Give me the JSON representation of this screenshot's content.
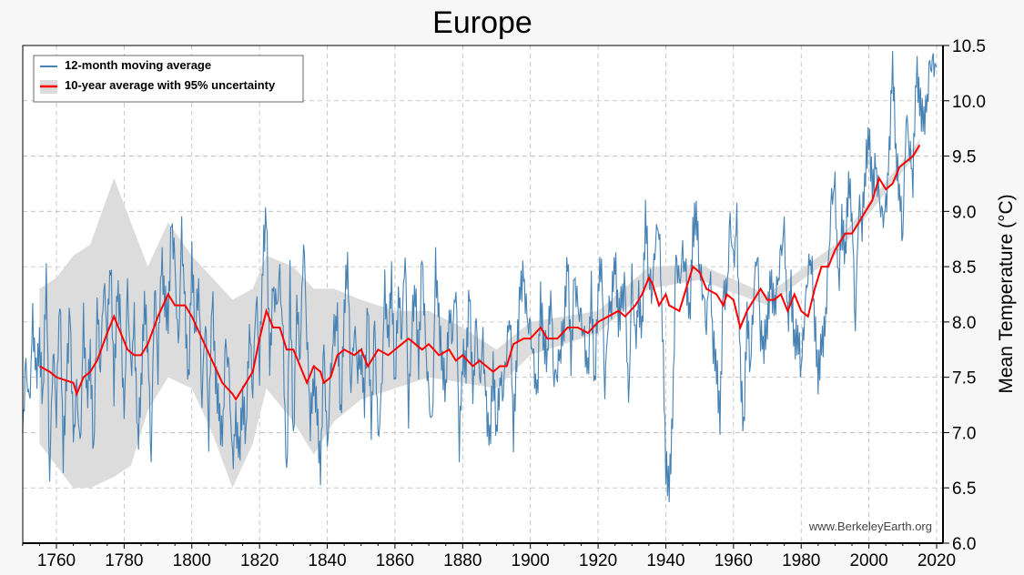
{
  "chart_data": {
    "type": "line",
    "title": "Europe",
    "xlabel": "",
    "ylabel": "Mean Temperature (°C)",
    "xlim": [
      1750,
      2022
    ],
    "ylim": [
      6.0,
      10.5
    ],
    "grid": true,
    "legend_position": "top-left",
    "x_ticks": [
      "1760",
      "1780",
      "1800",
      "1820",
      "1840",
      "1860",
      "1880",
      "1900",
      "1920",
      "1940",
      "1960",
      "1980",
      "2000",
      "2020"
    ],
    "y_ticks": [
      "6.0",
      "6.5",
      "7.0",
      "7.5",
      "8.0",
      "8.5",
      "9.0",
      "9.5",
      "10.0",
      "10.5"
    ],
    "watermark": "www.BerkeleyEarth.org",
    "colors": {
      "moving_average": "#4682b4",
      "ten_year": "#ff0000",
      "uncertainty": "#dcdcdc"
    },
    "series": [
      {
        "name": "12-month moving average",
        "start_year": 1750,
        "values": [
          7.0,
          7.6,
          7.2,
          8.0,
          7.5,
          7.8,
          7.3,
          8.5,
          6.6,
          7.8,
          7.2,
          8.3,
          6.8,
          7.5,
          8.1,
          6.9,
          7.4,
          6.8,
          8.0,
          7.3,
          7.7,
          6.8,
          8.2,
          7.6,
          8.4,
          7.9,
          8.6,
          7.4,
          8.3,
          8.0,
          7.1,
          8.3,
          7.5,
          8.0,
          6.9,
          7.4,
          8.2,
          7.8,
          6.8,
          8.4,
          7.6,
          8.6,
          8.2,
          8.0,
          8.9,
          8.5,
          7.7,
          8.8,
          8.1,
          7.4,
          8.6,
          7.9,
          8.4,
          7.3,
          8.1,
          7.0,
          8.3,
          7.5,
          7.2,
          6.9,
          7.8,
          7.5,
          6.7,
          7.1,
          6.8,
          7.3,
          7.0,
          8.0,
          7.4,
          8.3,
          7.6,
          8.6,
          9.0,
          7.6,
          8.3,
          8.1,
          8.4,
          7.8,
          6.5,
          8.4,
          6.9,
          8.2,
          7.7,
          8.8,
          7.9,
          7.1,
          7.5,
          7.2,
          6.6,
          7.8,
          6.8,
          7.5,
          7.9,
          8.0,
          7.1,
          8.1,
          8.6,
          7.4,
          8.0,
          7.6,
          7.7,
          7.3,
          8.2,
          7.0,
          8.0,
          6.9,
          7.3,
          8.3,
          7.8,
          8.4,
          7.4,
          8.3,
          7.9,
          8.7,
          7.2,
          8.0,
          8.3,
          7.6,
          8.6,
          7.8,
          7.3,
          7.0,
          8.5,
          8.0,
          7.6,
          7.4,
          8.1,
          7.9,
          8.4,
          6.9,
          7.7,
          7.6,
          8.3,
          7.3,
          8.0,
          7.4,
          7.8,
          7.2,
          6.9,
          7.6,
          7.0,
          7.5,
          7.4,
          7.8,
          8.1,
          7.0,
          7.7,
          8.3,
          8.4,
          8.0,
          7.9,
          7.6,
          7.3,
          8.2,
          7.8,
          7.7,
          8.3,
          7.5,
          7.6,
          7.8,
          8.0,
          8.6,
          7.6,
          8.4,
          8.1,
          8.0,
          7.8,
          7.5,
          8.3,
          7.4,
          8.3,
          8.6,
          7.4,
          8.1,
          8.2,
          8.6,
          8.0,
          8.2,
          8.3,
          7.2,
          8.4,
          7.8,
          8.2,
          7.9,
          9.0,
          8.4,
          8.3,
          8.8,
          8.9,
          8.0,
          6.7,
          6.5,
          7.1,
          8.6,
          8.3,
          8.6,
          8.4,
          8.0,
          8.8,
          9.0,
          8.5,
          8.3,
          8.0,
          8.5,
          7.8,
          7.6,
          7.1,
          8.3,
          8.2,
          8.9,
          8.5,
          8.9,
          7.6,
          7.0,
          8.1,
          7.6,
          8.3,
          8.7,
          7.9,
          7.8,
          8.0,
          8.4,
          8.1,
          8.3,
          8.6,
          8.8,
          8.0,
          8.3,
          7.8,
          7.9,
          7.6,
          8.1,
          8.5,
          8.6,
          8.0,
          7.5,
          7.8,
          7.9,
          8.5,
          9.1,
          9.2,
          8.3,
          8.9,
          8.6,
          9.3,
          9.0,
          8.0,
          9.1,
          8.9,
          9.4,
          9.7,
          9.2,
          9.4,
          9.1,
          8.9,
          9.0,
          9.5,
          10.4,
          9.5,
          9.2,
          8.8,
          9.9,
          9.6,
          9.3,
          10.3,
          10.0,
          9.8,
          9.9,
          10.3,
          10.3,
          10.3
        ]
      },
      {
        "name": "10-year average with 95% uncertainty",
        "points": [
          [
            1755,
            7.6
          ],
          [
            1758,
            7.55
          ],
          [
            1760,
            7.5
          ],
          [
            1765,
            7.45
          ],
          [
            1766,
            7.35
          ],
          [
            1768,
            7.5
          ],
          [
            1770,
            7.55
          ],
          [
            1772,
            7.65
          ],
          [
            1775,
            7.9
          ],
          [
            1777,
            8.05
          ],
          [
            1779,
            7.9
          ],
          [
            1781,
            7.75
          ],
          [
            1783,
            7.7
          ],
          [
            1785,
            7.7
          ],
          [
            1787,
            7.8
          ],
          [
            1790,
            8.05
          ],
          [
            1793,
            8.25
          ],
          [
            1795,
            8.15
          ],
          [
            1798,
            8.15
          ],
          [
            1800,
            8.05
          ],
          [
            1803,
            7.85
          ],
          [
            1806,
            7.65
          ],
          [
            1809,
            7.45
          ],
          [
            1812,
            7.35
          ],
          [
            1813,
            7.3
          ],
          [
            1815,
            7.4
          ],
          [
            1818,
            7.55
          ],
          [
            1820,
            7.85
          ],
          [
            1822,
            8.1
          ],
          [
            1824,
            7.95
          ],
          [
            1826,
            7.95
          ],
          [
            1828,
            7.75
          ],
          [
            1830,
            7.75
          ],
          [
            1832,
            7.6
          ],
          [
            1834,
            7.45
          ],
          [
            1836,
            7.6
          ],
          [
            1838,
            7.55
          ],
          [
            1839,
            7.45
          ],
          [
            1841,
            7.5
          ],
          [
            1843,
            7.7
          ],
          [
            1845,
            7.75
          ],
          [
            1848,
            7.7
          ],
          [
            1850,
            7.75
          ],
          [
            1852,
            7.6
          ],
          [
            1855,
            7.75
          ],
          [
            1858,
            7.7
          ],
          [
            1860,
            7.75
          ],
          [
            1862,
            7.8
          ],
          [
            1864,
            7.85
          ],
          [
            1866,
            7.8
          ],
          [
            1868,
            7.75
          ],
          [
            1870,
            7.8
          ],
          [
            1873,
            7.7
          ],
          [
            1876,
            7.75
          ],
          [
            1878,
            7.65
          ],
          [
            1880,
            7.7
          ],
          [
            1883,
            7.6
          ],
          [
            1885,
            7.65
          ],
          [
            1887,
            7.6
          ],
          [
            1889,
            7.55
          ],
          [
            1891,
            7.6
          ],
          [
            1893,
            7.6
          ],
          [
            1895,
            7.8
          ],
          [
            1898,
            7.85
          ],
          [
            1900,
            7.85
          ],
          [
            1903,
            7.95
          ],
          [
            1905,
            7.85
          ],
          [
            1908,
            7.85
          ],
          [
            1911,
            7.95
          ],
          [
            1914,
            7.95
          ],
          [
            1917,
            7.9
          ],
          [
            1920,
            8.0
          ],
          [
            1923,
            8.05
          ],
          [
            1926,
            8.1
          ],
          [
            1928,
            8.05
          ],
          [
            1931,
            8.15
          ],
          [
            1933,
            8.25
          ],
          [
            1935,
            8.4
          ],
          [
            1936,
            8.35
          ],
          [
            1938,
            8.15
          ],
          [
            1940,
            8.25
          ],
          [
            1941,
            8.15
          ],
          [
            1944,
            8.1
          ],
          [
            1946,
            8.3
          ],
          [
            1948,
            8.5
          ],
          [
            1950,
            8.45
          ],
          [
            1952,
            8.3
          ],
          [
            1955,
            8.25
          ],
          [
            1957,
            8.15
          ],
          [
            1958,
            8.25
          ],
          [
            1960,
            8.2
          ],
          [
            1962,
            7.95
          ],
          [
            1964,
            8.1
          ],
          [
            1966,
            8.2
          ],
          [
            1968,
            8.3
          ],
          [
            1970,
            8.2
          ],
          [
            1972,
            8.2
          ],
          [
            1974,
            8.25
          ],
          [
            1976,
            8.1
          ],
          [
            1978,
            8.25
          ],
          [
            1980,
            8.1
          ],
          [
            1982,
            8.05
          ],
          [
            1984,
            8.3
          ],
          [
            1986,
            8.5
          ],
          [
            1988,
            8.5
          ],
          [
            1990,
            8.65
          ],
          [
            1993,
            8.8
          ],
          [
            1995,
            8.8
          ],
          [
            1997,
            8.9
          ],
          [
            1999,
            9.0
          ],
          [
            2001,
            9.1
          ],
          [
            2003,
            9.3
          ],
          [
            2005,
            9.2
          ],
          [
            2007,
            9.25
          ],
          [
            2009,
            9.4
          ],
          [
            2011,
            9.45
          ],
          [
            2013,
            9.5
          ],
          [
            2015,
            9.6
          ]
        ],
        "uncertainty": [
          [
            1755,
            6.9,
            8.3
          ],
          [
            1760,
            6.7,
            8.4
          ],
          [
            1765,
            6.5,
            8.6
          ],
          [
            1770,
            6.5,
            8.7
          ],
          [
            1777,
            6.6,
            9.3
          ],
          [
            1782,
            6.7,
            8.9
          ],
          [
            1787,
            7.2,
            8.5
          ],
          [
            1793,
            7.5,
            8.9
          ],
          [
            1800,
            7.4,
            8.6
          ],
          [
            1806,
            7.0,
            8.4
          ],
          [
            1812,
            6.5,
            8.2
          ],
          [
            1818,
            6.9,
            8.3
          ],
          [
            1822,
            7.4,
            8.6
          ],
          [
            1830,
            7.1,
            8.5
          ],
          [
            1836,
            6.8,
            8.3
          ],
          [
            1842,
            7.1,
            8.3
          ],
          [
            1850,
            7.3,
            8.2
          ],
          [
            1860,
            7.4,
            8.1
          ],
          [
            1870,
            7.5,
            8.1
          ],
          [
            1880,
            7.45,
            7.95
          ],
          [
            1890,
            7.4,
            7.75
          ],
          [
            1900,
            7.7,
            8.0
          ],
          [
            1920,
            7.9,
            8.1
          ],
          [
            1935,
            8.3,
            8.5
          ],
          [
            1950,
            8.38,
            8.52
          ],
          [
            1970,
            8.15,
            8.25
          ],
          [
            1990,
            8.6,
            8.7
          ],
          [
            2015,
            9.55,
            9.65
          ]
        ]
      }
    ]
  }
}
